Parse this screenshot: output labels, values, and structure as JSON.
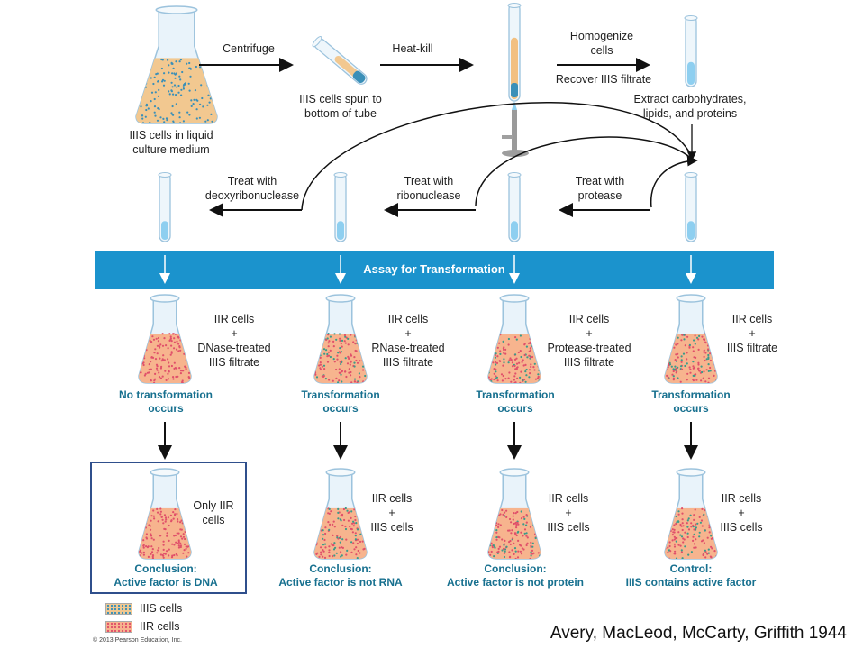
{
  "colors": {
    "assay_bar": "#1b93cd",
    "conclusion_text": "#17708f",
    "box_border": "#2f4f8c",
    "iiis_medium": "#f2c890",
    "iiis_dots": "#3a8fb8",
    "iir_medium": "#f7b48e",
    "iir_dots": "#e0506a",
    "filtrate": "#8ecff0"
  },
  "top_row": {
    "flask_label": [
      "IIIS cells in liquid",
      "culture medium"
    ],
    "step1": "Centrifuge",
    "tube_label": [
      "IIIS cells spun to",
      "bottom of tube"
    ],
    "step2": "Heat-kill",
    "step3": [
      "Homogenize",
      "cells"
    ],
    "step3_sub": "Recover IIIS filtrate",
    "extract": [
      "Extract carbohydrates,",
      "lipids, and proteins"
    ]
  },
  "treatments": [
    [
      "Treat with",
      "deoxyribonuclease"
    ],
    [
      "Treat with",
      "ribonuclease"
    ],
    [
      "Treat with",
      "protease"
    ]
  ],
  "assay": "Assay for Transformation",
  "assay_flasks": [
    {
      "label": [
        "IIR cells",
        "+",
        "DNase-treated",
        "IIIS filtrate"
      ],
      "result": [
        "No transformation",
        "occurs"
      ]
    },
    {
      "label": [
        "IIR cells",
        "+",
        "RNase-treated",
        "IIIS filtrate"
      ],
      "result": [
        "Transformation",
        "occurs"
      ]
    },
    {
      "label": [
        "IIR cells",
        "+",
        "Protease-treated",
        "IIIS filtrate"
      ],
      "result": [
        "Transformation",
        "occurs"
      ]
    },
    {
      "label": [
        "IIR cells",
        "+",
        "IIIS filtrate"
      ],
      "result": [
        "Transformation",
        "occurs"
      ]
    }
  ],
  "conclusions": [
    {
      "label": [
        "Only IIR",
        "cells"
      ],
      "text": [
        "Conclusion:",
        "Active factor is DNA"
      ]
    },
    {
      "label": [
        "IIR cells",
        "+",
        "IIIS cells"
      ],
      "text": [
        "Conclusion:",
        "Active factor is not RNA"
      ]
    },
    {
      "label": [
        "IIR cells",
        "+",
        "IIIS cells"
      ],
      "text": [
        "Conclusion:",
        "Active factor is not protein"
      ]
    },
    {
      "label": [
        "IIR cells",
        "+",
        "IIIS cells"
      ],
      "text": [
        "Control:",
        "IIIS contains active factor"
      ]
    }
  ],
  "legend": [
    {
      "label": "IIIS cells"
    },
    {
      "label": "IIR cells"
    }
  ],
  "copyright": "© 2013 Pearson Education, Inc.",
  "citation": "Avery, MacLeod, McCarty, Griffith 1944"
}
